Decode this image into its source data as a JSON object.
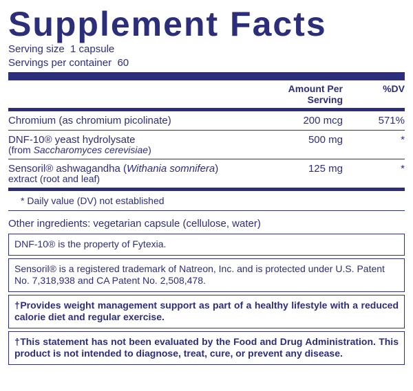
{
  "title": "Supplement Facts",
  "serving_size_label": "Serving size",
  "serving_size_value": "1 capsule",
  "servings_per_container_label": "Servings per container",
  "servings_per_container_value": "60",
  "columns": {
    "amount": "Amount Per Serving",
    "dv": "%DV"
  },
  "rows": [
    {
      "name": "Chromium (as chromium picolinate)",
      "sub": "",
      "amount": "200 mcg",
      "dv": "571%"
    },
    {
      "name": "DNF-10® yeast hydrolysate",
      "sub_pre": "(from ",
      "sub_italic": "Saccharomyces cerevisiae",
      "sub_post": ")",
      "amount": "500 mg",
      "dv": "*"
    },
    {
      "name_pre": "Sensoril® ashwagandha (",
      "name_italic": "Withania somnifera",
      "name_post": ")",
      "sub": "extract (root and leaf)",
      "amount": "125 mg",
      "dv": "*"
    }
  ],
  "dv_note": "* Daily value (DV) not established",
  "other_ingredients": "Other ingredients: vegetarian capsule (cellulose, water)",
  "footnote1": "DNF-10® is the property of Fytexia.",
  "footnote2": "Sensoril® is a registered trademark of Natreon, Inc. and is protected under U.S. Patent No. 7,318,938 and CA Patent No. 2,508,478.",
  "footnote3": "†Provides weight management support as part of a healthy lifestyle with a reduced calorie diet and regular exercise.",
  "footnote4": "†This statement has not been evaluated by the Food and Drug Administration. This product is not intended to diagnose, treat, cure, or prevent any disease.",
  "colors": {
    "ink": "#2c2e7a",
    "bg": "#ffffff"
  }
}
